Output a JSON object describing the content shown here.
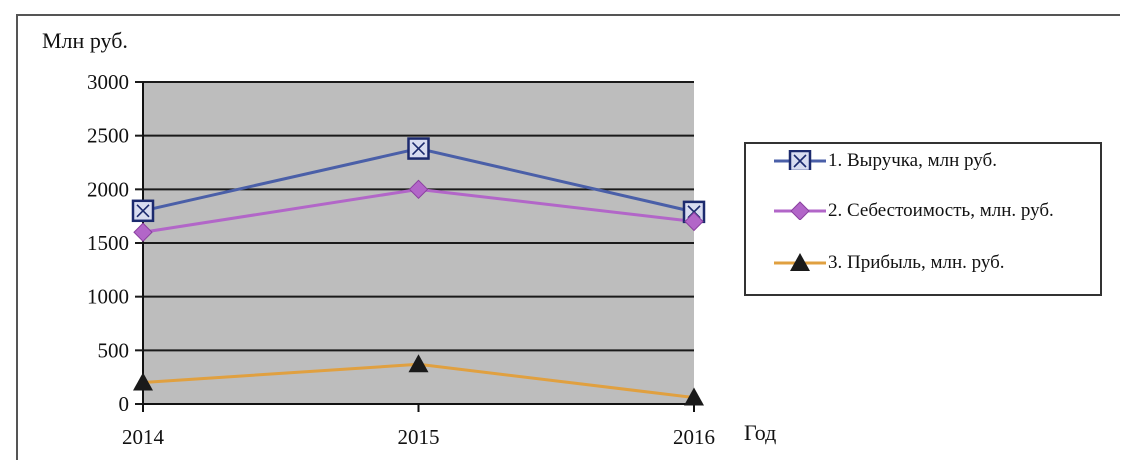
{
  "chart_data": {
    "type": "line",
    "categories": [
      "2014",
      "2015",
      "2016"
    ],
    "series": [
      {
        "name": "1. Выручка, млн руб.",
        "values": [
          1800,
          2380,
          1790
        ],
        "color": "#4a5fa8",
        "marker": "square"
      },
      {
        "name": "2. Себестоимость, млн. руб.",
        "values": [
          1600,
          2000,
          1700
        ],
        "color": "#b266c8",
        "marker": "diamond"
      },
      {
        "name": "3. Прибыль, млн. руб.",
        "values": [
          200,
          370,
          60
        ],
        "color": "#e0a040",
        "marker": "triangle"
      }
    ],
    "ylabel": "Млн руб.",
    "xlabel": "Год",
    "ylim": [
      0,
      3000
    ],
    "yticks": [
      0,
      500,
      1000,
      1500,
      2000,
      2500,
      3000
    ],
    "grid": true,
    "plot_background": "#bdbdbd",
    "legend_position": "right"
  }
}
